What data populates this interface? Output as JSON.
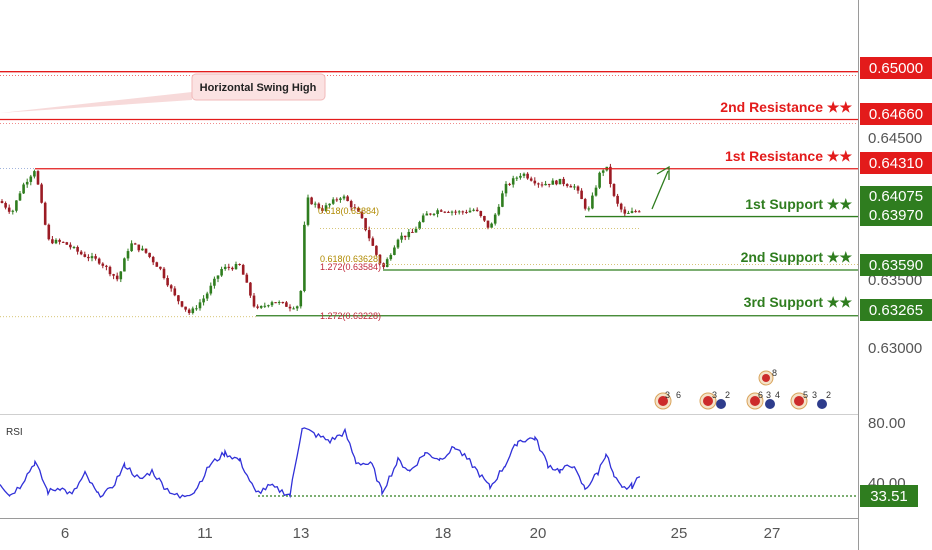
{
  "chart_data": {
    "type": "candlestick",
    "price_axis": {
      "ticks": [
        "0.64500",
        "0.63970",
        "0.63500",
        "0.63000"
      ]
    },
    "time_axis": {
      "ticks": [
        "6",
        "11",
        "13",
        "18",
        "20",
        "25",
        "27"
      ]
    },
    "levels": [
      {
        "name": "",
        "value": "0.65000",
        "color": "#e31b1b"
      },
      {
        "name": "2nd Resistance ★★",
        "value": "0.64660",
        "color": "#e31b1b"
      },
      {
        "name": "1st Resistance ★★",
        "value": "0.64310",
        "color": "#e31b1b"
      },
      {
        "name": "",
        "value": "0.64075",
        "color": "#2f7d1f"
      },
      {
        "name": "1st Support ★★",
        "value": "0.63970",
        "color": "#2f7d1f"
      },
      {
        "name": "2nd Support ★★",
        "value": "0.63590",
        "color": "#2f7d1f"
      },
      {
        "name": "3rd Support ★★",
        "value": "0.63265",
        "color": "#2f7d1f"
      }
    ],
    "annotations": {
      "swing_high": "Horizontal Swing High",
      "fib_labels": [
        "0.618(0.63884)",
        "0.618(0.63628)",
        "1.272(0.63584)",
        "1.272(0.63228)"
      ]
    },
    "event_badges": [
      {
        "a": "3",
        "b": "6"
      },
      {
        "a": "3",
        "b": "2"
      },
      {
        "a": "6",
        "b": "3",
        "c": "4",
        "top": "8"
      },
      {
        "a": "5",
        "b": "3",
        "c": "2"
      }
    ],
    "rsi": {
      "label": "RSI",
      "ticks": [
        "80.00",
        "40.00"
      ],
      "current": "33.51"
    },
    "colors": {
      "up": "#2f7d1f",
      "down": "#9b1b24",
      "rsi": "#3030d8"
    }
  }
}
